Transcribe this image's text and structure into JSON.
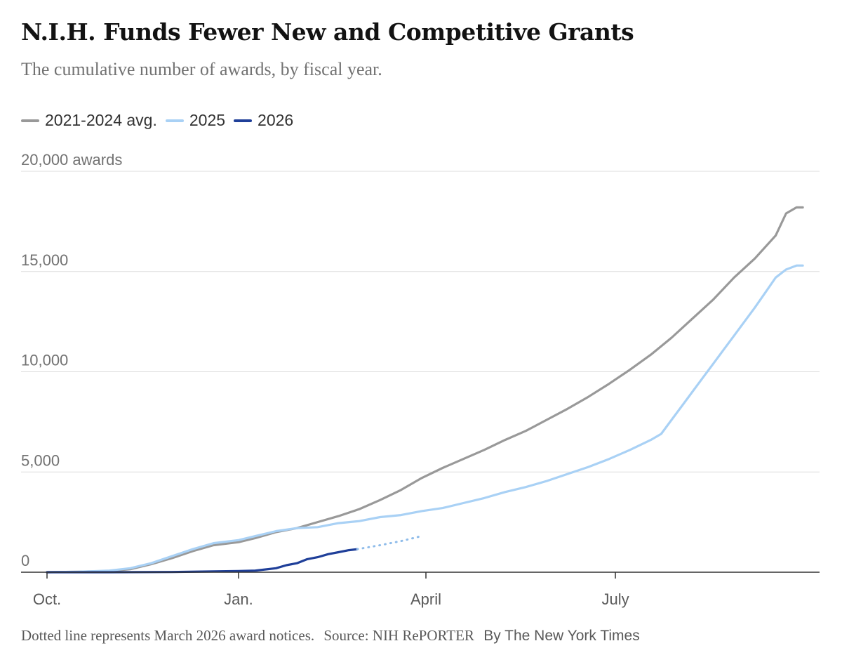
{
  "chart_data": {
    "type": "line",
    "title": "N.I.H. Funds Fewer New and Competitive Grants",
    "subtitle": "The cumulative number of awards, by fiscal year.",
    "ylim": [
      0,
      20000
    ],
    "y_ticks": [
      {
        "value": 0,
        "label": "0"
      },
      {
        "value": 5000,
        "label": "5,000"
      },
      {
        "value": 10000,
        "label": "10,000"
      },
      {
        "value": 15000,
        "label": "15,000"
      },
      {
        "value": 20000,
        "label": "20,000 awards"
      }
    ],
    "x_ticks": [
      {
        "day": 0,
        "label": "Oct."
      },
      {
        "day": 92,
        "label": "Jan."
      },
      {
        "day": 182,
        "label": "April"
      },
      {
        "day": 273,
        "label": "July"
      }
    ],
    "xlim": [
      0,
      365
    ],
    "grid": true,
    "legend_position": "top-left",
    "series": [
      {
        "name": "2021-2024 avg.",
        "color": "#999999",
        "points": [
          [
            0,
            0
          ],
          [
            15,
            20
          ],
          [
            30,
            60
          ],
          [
            40,
            150
          ],
          [
            50,
            400
          ],
          [
            60,
            700
          ],
          [
            70,
            1050
          ],
          [
            80,
            1350
          ],
          [
            92,
            1500
          ],
          [
            100,
            1700
          ],
          [
            110,
            2000
          ],
          [
            120,
            2200
          ],
          [
            130,
            2500
          ],
          [
            140,
            2800
          ],
          [
            150,
            3150
          ],
          [
            160,
            3600
          ],
          [
            170,
            4100
          ],
          [
            180,
            4700
          ],
          [
            190,
            5200
          ],
          [
            200,
            5650
          ],
          [
            210,
            6100
          ],
          [
            220,
            6600
          ],
          [
            230,
            7050
          ],
          [
            240,
            7600
          ],
          [
            250,
            8150
          ],
          [
            260,
            8750
          ],
          [
            270,
            9400
          ],
          [
            280,
            10100
          ],
          [
            290,
            10850
          ],
          [
            300,
            11700
          ],
          [
            310,
            12650
          ],
          [
            320,
            13600
          ],
          [
            330,
            14700
          ],
          [
            340,
            15650
          ],
          [
            350,
            16800
          ],
          [
            355,
            17900
          ],
          [
            360,
            18200
          ],
          [
            363,
            18200
          ]
        ]
      },
      {
        "name": "2025",
        "color": "#a9d1f5",
        "points": [
          [
            0,
            0
          ],
          [
            15,
            20
          ],
          [
            30,
            80
          ],
          [
            40,
            200
          ],
          [
            50,
            450
          ],
          [
            60,
            800
          ],
          [
            70,
            1150
          ],
          [
            80,
            1450
          ],
          [
            92,
            1600
          ],
          [
            100,
            1800
          ],
          [
            110,
            2050
          ],
          [
            120,
            2200
          ],
          [
            130,
            2250
          ],
          [
            140,
            2450
          ],
          [
            150,
            2550
          ],
          [
            160,
            2750
          ],
          [
            170,
            2850
          ],
          [
            180,
            3050
          ],
          [
            190,
            3200
          ],
          [
            200,
            3450
          ],
          [
            210,
            3700
          ],
          [
            220,
            4000
          ],
          [
            230,
            4250
          ],
          [
            240,
            4550
          ],
          [
            250,
            4900
          ],
          [
            260,
            5250
          ],
          [
            270,
            5650
          ],
          [
            280,
            6100
          ],
          [
            290,
            6600
          ],
          [
            295,
            6900
          ],
          [
            300,
            7600
          ],
          [
            305,
            8300
          ],
          [
            310,
            9000
          ],
          [
            315,
            9700
          ],
          [
            320,
            10400
          ],
          [
            325,
            11100
          ],
          [
            330,
            11800
          ],
          [
            335,
            12500
          ],
          [
            340,
            13200
          ],
          [
            345,
            13950
          ],
          [
            350,
            14700
          ],
          [
            355,
            15100
          ],
          [
            360,
            15300
          ],
          [
            363,
            15300
          ]
        ]
      },
      {
        "name": "2026",
        "color": "#1f3f99",
        "points": [
          [
            0,
            0
          ],
          [
            30,
            0
          ],
          [
            60,
            10
          ],
          [
            80,
            40
          ],
          [
            92,
            60
          ],
          [
            100,
            80
          ],
          [
            110,
            200
          ],
          [
            115,
            350
          ],
          [
            120,
            450
          ],
          [
            125,
            650
          ],
          [
            130,
            750
          ],
          [
            135,
            900
          ],
          [
            140,
            1000
          ],
          [
            145,
            1100
          ],
          [
            149,
            1150
          ]
        ]
      },
      {
        "name": "March 2026 award notices",
        "color": "#8fbcea",
        "dotted": true,
        "points": [
          [
            149,
            1150
          ],
          [
            160,
            1350
          ],
          [
            170,
            1550
          ],
          [
            179,
            1780
          ]
        ]
      }
    ]
  },
  "footer": {
    "note": "Dotted line represents March 2026 award notices.",
    "source": "Source: NIH RePORTER",
    "byline": "By The New York Times"
  }
}
